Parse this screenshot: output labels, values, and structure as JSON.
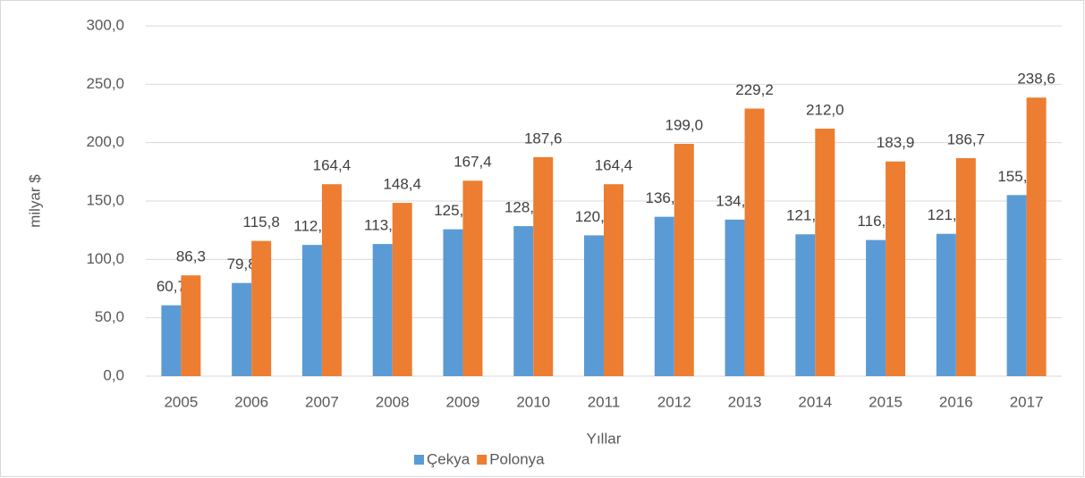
{
  "chart_data": {
    "type": "bar",
    "x_label": "Yıllar",
    "y_label": "milyar $",
    "categories": [
      "2005",
      "2006",
      "2007",
      "2008",
      "2009",
      "2010",
      "2011",
      "2012",
      "2013",
      "2014",
      "2015",
      "2016",
      "2017"
    ],
    "series": [
      {
        "name": "Çekya",
        "color": "#5b9bd5",
        "values": [
          60.7,
          79.8,
          112.4,
          113.2,
          125.8,
          128.5,
          120.6,
          136.5,
          134.1,
          121.5,
          116.6,
          121.9,
          155.1
        ],
        "value_labels": [
          "60,7",
          "79,8",
          "112,4",
          "113,2",
          "125,8",
          "128,5",
          "120,6",
          "136,5",
          "134,1",
          "121,5",
          "116,6",
          "121,9",
          "155,1"
        ]
      },
      {
        "name": "Polonya",
        "color": "#ed7d31",
        "values": [
          86.3,
          115.8,
          164.4,
          148.4,
          167.4,
          187.6,
          164.4,
          199.0,
          229.2,
          212.0,
          183.9,
          186.7,
          238.6
        ],
        "value_labels": [
          "86,3",
          "115,8",
          "164,4",
          "148,4",
          "167,4",
          "187,6",
          "164,4",
          "199,0",
          "229,2",
          "212,0",
          "183,9",
          "186,7",
          "238,6"
        ]
      }
    ],
    "ylim": [
      0,
      300
    ],
    "yticks": [
      {
        "value": 0,
        "label": "0,0"
      },
      {
        "value": 50,
        "label": "50,0"
      },
      {
        "value": 100,
        "label": "100,0"
      },
      {
        "value": 150,
        "label": "150,0"
      },
      {
        "value": 200,
        "label": "200,0"
      },
      {
        "value": 250,
        "label": "250,0"
      },
      {
        "value": 300,
        "label": "300,0"
      }
    ],
    "grid": true,
    "legend": "bottom"
  }
}
